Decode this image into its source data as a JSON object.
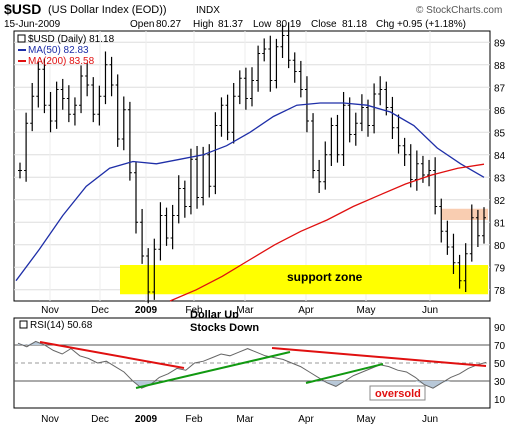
{
  "header": {
    "symbol": "$USD",
    "name": "(US Dollar Index (EOD))",
    "exchange": "INDX",
    "date": "15-Jun-2009",
    "open_label": "Open",
    "open": "80.27",
    "high_label": "High",
    "high": "81.37",
    "low_label": "Low",
    "low": "80.19",
    "close_label": "Close",
    "close": "81.18",
    "chg_label": "Chg",
    "chg": "+0.95 (+1.18%)",
    "watermark": "© StockCharts.com"
  },
  "legend": {
    "price": "$USD (Daily) 81.18",
    "ma50": "MA(50) 82.83",
    "ma200": "MA(200) 83.58"
  },
  "annotations": {
    "support": "support zone",
    "dollar_up": "Dollar Up",
    "stocks_down": "Stocks Down",
    "rsi_label": "RSI(14) 50.68",
    "oversold": "oversold"
  },
  "colors": {
    "price_bars": "#000000",
    "ma50": "#1f2fa8",
    "ma200": "#e01010",
    "support_zone": "#ffff00",
    "resistance_zone": "#f8c8a8",
    "rsi_line": "#666666",
    "rsi_fill": "#b8c8d8",
    "trend_red": "#e01010",
    "trend_green": "#119911",
    "grid": "#dddddd"
  },
  "chart_data": [
    {
      "type": "ohlc",
      "title": "$USD (Daily)",
      "x_labels": [
        "Nov",
        "Dec",
        "2009",
        "Feb",
        "Mar",
        "Apr",
        "May",
        "Jun"
      ],
      "ylim": [
        77.5,
        89.5
      ],
      "y_ticks": [
        78,
        79,
        80,
        81,
        82,
        83,
        84,
        85,
        86,
        87,
        88,
        89
      ],
      "series": [
        {
          "name": "$USD (Daily)",
          "close_path": [
            83.3,
            85.4,
            86.6,
            87.8,
            86.2,
            85.5,
            86.9,
            86.5,
            85.8,
            86.2,
            87.5,
            87.1,
            85.8,
            86.6,
            88.0,
            87.1,
            84.7,
            86.0,
            83.2,
            81.0,
            79.5,
            77.9,
            79.8,
            81.3,
            80.3,
            81.3,
            82.5,
            81.7,
            83.8,
            82.1,
            84.0,
            82.6,
            85.3,
            86.2,
            85.0,
            86.6,
            87.4,
            86.5,
            87.3,
            88.5,
            88.7,
            87.3,
            88.8,
            89.3,
            88.2,
            87.7,
            86.9,
            85.5,
            83.3,
            82.8,
            84.0,
            85.3,
            84.0,
            86.2,
            84.9,
            85.4,
            86.1,
            85.3,
            86.7,
            86.9,
            86.1,
            85.2,
            84.4,
            84.0,
            82.9,
            83.6,
            83.1,
            83.3,
            81.7,
            80.6,
            79.9,
            79.2,
            78.4,
            79.6,
            81.2,
            80.4,
            81.2
          ]
        },
        {
          "name": "MA(50)",
          "last": 82.83,
          "path": [
            78.4,
            79.8,
            81.3,
            82.6,
            83.4,
            83.7,
            83.6,
            83.8,
            84.0,
            84.4,
            85.0,
            85.7,
            86.2,
            86.3,
            86.3,
            86.2,
            85.9,
            85.3,
            84.3,
            83.6,
            83.0
          ]
        },
        {
          "name": "MA(200)",
          "last": 83.58,
          "path": [
            77.5,
            78.0,
            78.6,
            79.3,
            80.0,
            80.6,
            81.1,
            81.7,
            82.2,
            82.7,
            83.1,
            83.4,
            83.58
          ]
        }
      ],
      "support_zone": [
        77.8,
        79.1
      ],
      "resistance_zone": [
        81.1,
        81.6
      ]
    },
    {
      "type": "line",
      "title": "RSI(14)",
      "ylim": [
        0,
        100
      ],
      "y_ticks": [
        10,
        30,
        50,
        70,
        90
      ],
      "reference_lines": [
        30,
        50,
        70
      ],
      "series": [
        {
          "name": "RSI(14)",
          "last": 50.68,
          "values": [
            72,
            68,
            74,
            70,
            64,
            60,
            66,
            58,
            55,
            50,
            52,
            46,
            40,
            30,
            22,
            26,
            34,
            38,
            44,
            42,
            50,
            52,
            56,
            60,
            58,
            62,
            66,
            62,
            58,
            56,
            54,
            50,
            46,
            40,
            34,
            28,
            24,
            30,
            36,
            40,
            44,
            48,
            46,
            42,
            40,
            34,
            26,
            22,
            28,
            34,
            38,
            44,
            48,
            50.68
          ]
        }
      ]
    }
  ]
}
